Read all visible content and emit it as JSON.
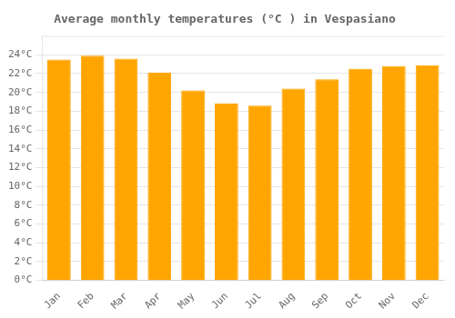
{
  "chart_data": {
    "type": "bar",
    "title": "Average monthly temperatures (°C ) in Vespasiano",
    "categories": [
      "Jan",
      "Feb",
      "Mar",
      "Apr",
      "May",
      "Jun",
      "Jul",
      "Aug",
      "Sep",
      "Oct",
      "Nov",
      "Dec"
    ],
    "values": [
      23.5,
      23.9,
      23.6,
      22.1,
      20.2,
      18.8,
      18.6,
      20.4,
      21.4,
      22.5,
      22.8,
      22.9
    ],
    "color": "#FFA500",
    "ylim": [
      0,
      26
    ],
    "yticks": [
      {
        "value": 0,
        "label": "0°C"
      },
      {
        "value": 2,
        "label": "2°C"
      },
      {
        "value": 4,
        "label": "4°C"
      },
      {
        "value": 6,
        "label": "6°C"
      },
      {
        "value": 8,
        "label": "8°C"
      },
      {
        "value": 10,
        "label": "10°C"
      },
      {
        "value": 12,
        "label": "12°C"
      },
      {
        "value": 14,
        "label": "14°C"
      },
      {
        "value": 16,
        "label": "16°C"
      },
      {
        "value": 18,
        "label": "18°C"
      },
      {
        "value": 20,
        "label": "20°C"
      },
      {
        "value": 22,
        "label": "22°C"
      },
      {
        "value": 24,
        "label": "24°C"
      }
    ],
    "grid": true
  }
}
